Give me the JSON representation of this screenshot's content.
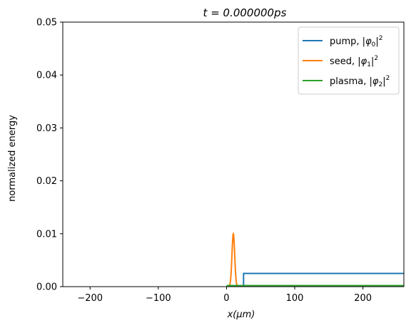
{
  "chart_data": {
    "type": "line",
    "title": "t = 0.000000ps",
    "xlabel": "x(μm)",
    "ylabel": "normalized energy",
    "xlim": [
      -240,
      260
    ],
    "ylim": [
      0,
      0.05
    ],
    "xticks": [
      -200,
      -100,
      0,
      100,
      200
    ],
    "yticks": [
      0.0,
      0.01,
      0.02,
      0.03,
      0.04,
      0.05
    ],
    "xtick_labels": [
      "−200",
      "−100",
      "0",
      "100",
      "200"
    ],
    "ytick_labels": [
      "0.00",
      "0.01",
      "0.02",
      "0.03",
      "0.04",
      "0.05"
    ],
    "grid": false,
    "legend_position": "top-right",
    "series": [
      {
        "name": "pump, |φ0|²",
        "legend_main": "pump, |",
        "legend_sym": "φ",
        "legend_sub": "0",
        "legend_sup": "2",
        "color": "#1f77b4",
        "x": [
          0,
          25,
          25,
          260
        ],
        "y": [
          0,
          0,
          0.0025,
          0.0025
        ]
      },
      {
        "name": "seed, |φ1|²",
        "legend_main": "seed, |",
        "legend_sym": "φ",
        "legend_sub": "1",
        "legend_sup": "2",
        "color": "#ff7f0e",
        "gaussian": {
          "center": 10,
          "sigma": 2,
          "peak": 0.01,
          "from": 0,
          "to": 20
        }
      },
      {
        "name": "plasma, |φ2|²",
        "legend_main": "plasma, |",
        "legend_sym": "φ",
        "legend_sub": "2",
        "legend_sup": "2",
        "color": "#2ca02c",
        "x": [
          0,
          260
        ],
        "y": [
          0.0002,
          0.0002
        ]
      }
    ]
  }
}
